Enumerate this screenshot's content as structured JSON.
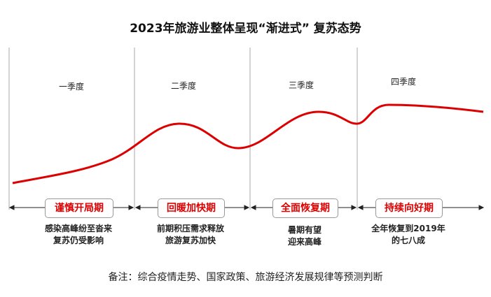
{
  "title": "2023年旅游业整体呈现“渐进式” 复苏态势",
  "accent_color": "#d00000",
  "quarters": [
    {
      "label": "一季度",
      "phase": "谨慎开局期",
      "desc": [
        "感染高峰纷至沓来",
        "复苏仍受影响"
      ]
    },
    {
      "label": "二季度",
      "phase": "回暖加快期",
      "desc": [
        "前期积压需求释放",
        "旅游复苏加快"
      ]
    },
    {
      "label": "三季度",
      "phase": "全面恢复期",
      "desc": [
        "暑期有望",
        "迎来高峰"
      ]
    },
    {
      "label": "四季度",
      "phase": "持续向好期",
      "desc": [
        "全年恢复到2019年",
        "的七八成"
      ]
    }
  ],
  "note": "备注：综合疫情走势、国家政策、旅游经济发展规律等预测判断"
}
